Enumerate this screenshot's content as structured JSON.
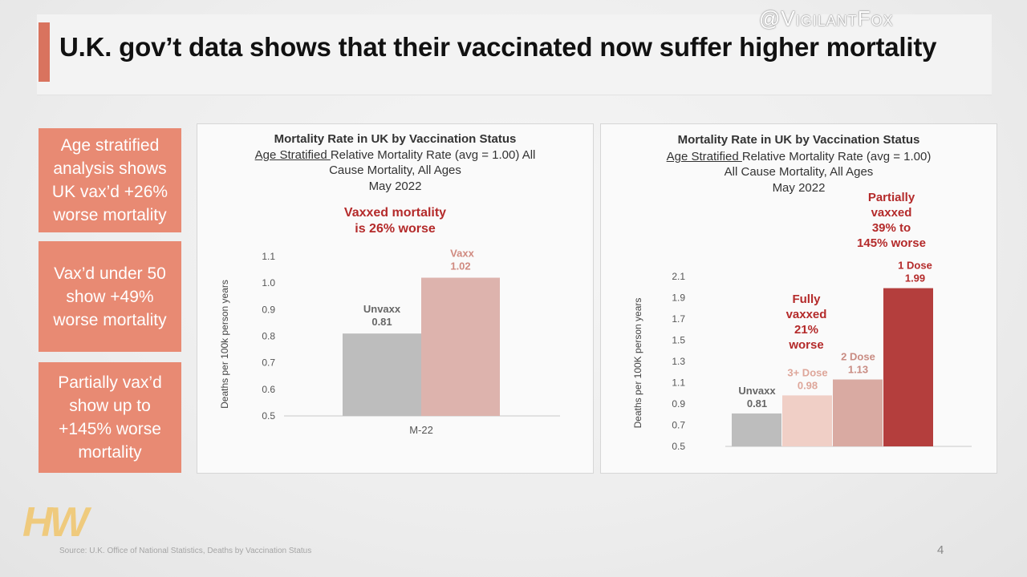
{
  "watermark": "@VigilantFox",
  "title": "U.K. gov’t data shows that their vaccinated now suffer higher mortality",
  "callouts": [
    "Age stratified analysis shows UK vax’d +26% worse mortality",
    "Vax’d under 50 show +49% worse mortality",
    "Partially vax’d show up to +145% worse mortality"
  ],
  "logo_text": "HW",
  "source": "Source: U.K. Office of National Statistics, Deaths by Vaccination Status",
  "page_number": "4",
  "colors": {
    "callout_bg": "#e88a73",
    "accent": "#d9735e",
    "unvaxx": "#bdbdbd",
    "vaxx": "#ddb3ad",
    "dose3": "#f0cfc6",
    "dose2": "#d9aaa2",
    "dose1": "#b43e3d",
    "annotation_red": "#b42a2a"
  },
  "chart_data": [
    {
      "type": "bar",
      "title": "Mortality Rate in UK by Vaccination Status",
      "subtitle_underlined": "Age Stratified ",
      "subtitle_line1_rest": "Relative Mortality Rate (avg = 1.00) All",
      "subtitle_line2": "Cause Mortality, All Ages",
      "subtitle_line3": "May 2022",
      "annotation_line1": "Vaxxed  mortality",
      "annotation_line2": "is 26% worse",
      "ylabel": "Deaths per 100k person years",
      "ylim": [
        0.5,
        1.1
      ],
      "yticks": [
        "0.5",
        "0.6",
        "0.7",
        "0.8",
        "0.9",
        "1.0",
        "1.1"
      ],
      "categories": [
        "M-22"
      ],
      "series": [
        {
          "name": "Unvaxx",
          "values": [
            0.81
          ],
          "label": "0.81"
        },
        {
          "name": "Vaxx",
          "values": [
            1.02
          ],
          "label": "1.02"
        }
      ]
    },
    {
      "type": "bar",
      "title": "Mortality Rate in UK by Vaccination Status",
      "subtitle_underlined": "Age Stratified ",
      "subtitle_line1_rest": "Relative Mortality Rate (avg = 1.00)",
      "subtitle_line2": "All Cause Mortality, All Ages",
      "subtitle_line3": "May 2022",
      "annotation_fully": [
        "Fully",
        "vaxxed",
        "21%",
        "worse"
      ],
      "annotation_partial": [
        "Partially",
        "vaxxed",
        "39% to",
        "145% worse"
      ],
      "ylabel": "Deaths per 100K person years",
      "ylim": [
        0.5,
        2.1
      ],
      "yticks": [
        "0.5",
        "0.7",
        "0.9",
        "1.1",
        "1.3",
        "1.5",
        "1.7",
        "1.9",
        "2.1"
      ],
      "bars": [
        {
          "name": "Unvaxx",
          "value": 0.81,
          "label": "0.81"
        },
        {
          "name": "3+ Dose",
          "value": 0.98,
          "label": "0.98"
        },
        {
          "name": "2 Dose",
          "value": 1.13,
          "label": "1.13"
        },
        {
          "name": "1 Dose",
          "value": 1.99,
          "label": "1.99"
        }
      ]
    }
  ]
}
